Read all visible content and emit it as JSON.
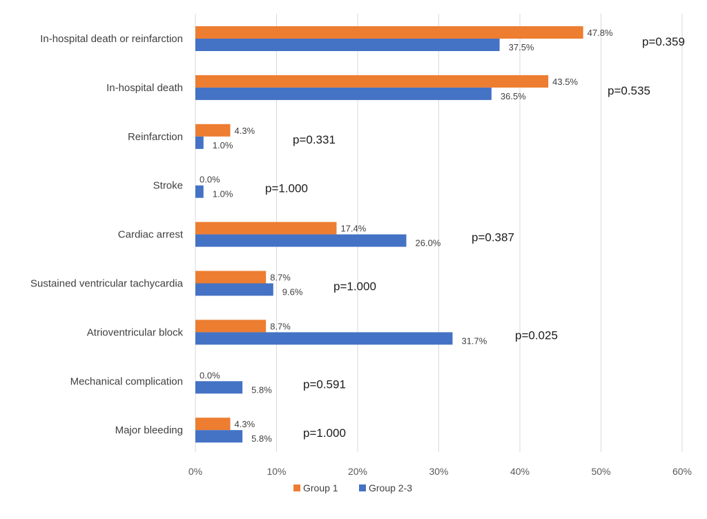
{
  "chart_data": {
    "type": "bar",
    "orientation": "horizontal",
    "categories": [
      "In-hospital death or reinfarction",
      "In-hospital death",
      "Reinfarction",
      "Stroke",
      "Cardiac arrest",
      "Sustained ventricular tachycardia",
      "Atrioventricular block",
      "Mechanical complication",
      "Major bleeding"
    ],
    "series": [
      {
        "name": "Group 1",
        "color": "#ed7d31",
        "values": [
          47.8,
          43.5,
          4.3,
          0.0,
          17.4,
          8.7,
          8.7,
          0.0,
          4.3
        ],
        "labels": [
          "47.8%",
          "43.5%",
          "4.3%",
          "0.0%",
          "17.4%",
          "8.7%",
          "8.7%",
          "0.0%",
          "4.3%"
        ]
      },
      {
        "name": "Group 2-3",
        "color": "#4472c4",
        "values": [
          37.5,
          36.5,
          1.0,
          1.0,
          26.0,
          9.6,
          31.7,
          5.8,
          5.8
        ],
        "labels": [
          "37.5%",
          "36.5%",
          "1.0%",
          "1.0%",
          "26.0%",
          "9.6%",
          "31.7%",
          "5.8%",
          "5.8%"
        ]
      }
    ],
    "p_values": [
      "p=0.359",
      "p=0.535",
      "p=0.331",
      "p=1.000",
      "p=0.387",
      "p=1.000",
      "p=0.025",
      "p=0.591",
      "p=1.000"
    ],
    "xlim": [
      0,
      60
    ],
    "x_ticks": [
      "0%",
      "10%",
      "20%",
      "30%",
      "40%",
      "50%",
      "60%"
    ],
    "grid": "vertical",
    "legend_position": "bottom"
  }
}
